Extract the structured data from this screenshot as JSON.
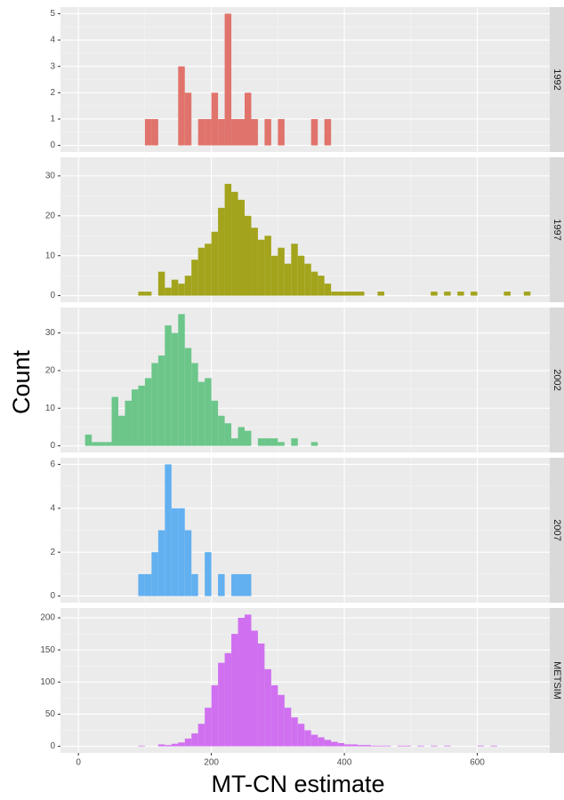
{
  "x_axis": {
    "label": "MT-CN estimate",
    "xlim": [
      -27,
      709
    ],
    "xticks": [
      0,
      200,
      400,
      600
    ]
  },
  "y_axis": {
    "label": "Count"
  },
  "chart_data": [
    {
      "type": "histogram",
      "facet": "1992",
      "color": "#e0736b",
      "grid": true,
      "ylim": [
        -0.25,
        5.25
      ],
      "yticks": [
        0,
        1,
        2,
        3,
        4,
        5
      ],
      "bins": [
        100,
        110,
        120,
        130,
        140,
        150,
        160,
        170,
        180,
        190,
        200,
        210,
        220,
        230,
        240,
        250,
        260,
        270,
        280,
        290,
        300,
        310,
        320,
        330,
        340,
        350,
        360,
        370,
        380
      ],
      "values": [
        1,
        1,
        0,
        0,
        0,
        3,
        2,
        0,
        1,
        1,
        2,
        1,
        5,
        1,
        1,
        2,
        1,
        0,
        1,
        0,
        1,
        0,
        0,
        0,
        0,
        1,
        0,
        1
      ]
    },
    {
      "type": "histogram",
      "facet": "1997",
      "color": "#a3a41c",
      "grid": true,
      "ylim": [
        -1.65,
        34.65
      ],
      "yticks": [
        0,
        10,
        20,
        30
      ],
      "bins": [
        90,
        100,
        110,
        120,
        130,
        140,
        150,
        160,
        170,
        180,
        190,
        200,
        210,
        220,
        230,
        240,
        250,
        260,
        270,
        280,
        290,
        300,
        310,
        320,
        330,
        340,
        350,
        360,
        370,
        380,
        390,
        400,
        410,
        420,
        430,
        440,
        450,
        460,
        470,
        480,
        490,
        500,
        510,
        520,
        530,
        540,
        550,
        560,
        570,
        580,
        590,
        600,
        610,
        620,
        630,
        640,
        650,
        660,
        670,
        680
      ],
      "values": [
        1,
        1,
        0,
        6,
        2,
        4,
        3,
        5,
        9,
        12,
        13,
        16,
        22,
        28,
        26,
        24,
        20,
        17,
        14,
        15,
        10,
        12,
        8,
        13,
        10,
        8,
        6,
        5,
        3,
        1,
        1,
        1,
        1,
        1,
        0,
        0,
        1,
        0,
        0,
        0,
        0,
        0,
        0,
        0,
        1,
        0,
        1,
        0,
        1,
        0,
        1,
        0,
        0,
        0,
        0,
        1,
        0,
        0,
        1
      ]
    },
    {
      "type": "histogram",
      "facet": "2002",
      "color": "#6cc68a",
      "grid": true,
      "ylim": [
        -1.75,
        36.75
      ],
      "yticks": [
        0,
        10,
        20,
        30
      ],
      "bins": [
        10,
        20,
        30,
        40,
        50,
        60,
        70,
        80,
        90,
        100,
        110,
        120,
        130,
        140,
        150,
        160,
        170,
        180,
        190,
        200,
        210,
        220,
        230,
        240,
        250,
        260,
        270,
        280,
        290,
        300,
        310,
        320,
        330,
        340,
        350,
        360
      ],
      "values": [
        3,
        1,
        1,
        1,
        13,
        8,
        12,
        15,
        16,
        18,
        22,
        24,
        32,
        30,
        35,
        26,
        22,
        17,
        18,
        12,
        8,
        6,
        2,
        5,
        4,
        0,
        2,
        2,
        2,
        1,
        0,
        2,
        0,
        0,
        1
      ]
    },
    {
      "type": "histogram",
      "facet": "2007",
      "color": "#62b0f0",
      "grid": true,
      "ylim": [
        -0.3,
        6.3
      ],
      "yticks": [
        0,
        2,
        4,
        6
      ],
      "bins": [
        90,
        100,
        110,
        120,
        130,
        140,
        150,
        160,
        170,
        180,
        190,
        200,
        210,
        220,
        230,
        240,
        250,
        260
      ],
      "values": [
        1,
        1,
        2,
        3,
        6,
        4,
        4,
        3,
        1,
        0,
        2,
        0,
        1,
        0,
        1,
        1,
        1
      ]
    },
    {
      "type": "histogram",
      "facet": "METSIM",
      "color": "#d070f0",
      "grid": true,
      "ylim": [
        -10.25,
        215.25
      ],
      "yticks": [
        0,
        50,
        100,
        150,
        200
      ],
      "bins": [
        90,
        100,
        110,
        120,
        130,
        140,
        150,
        160,
        170,
        180,
        190,
        200,
        210,
        220,
        230,
        240,
        250,
        260,
        270,
        280,
        290,
        300,
        310,
        320,
        330,
        340,
        350,
        360,
        370,
        380,
        390,
        400,
        410,
        420,
        430,
        440,
        450,
        460,
        470,
        480,
        490,
        500,
        510,
        520,
        530,
        540,
        550,
        560,
        570,
        580,
        590,
        600,
        610,
        620,
        630,
        640
      ],
      "values": [
        1,
        0,
        0,
        3,
        2,
        4,
        6,
        12,
        20,
        35,
        60,
        95,
        130,
        145,
        175,
        200,
        205,
        180,
        160,
        120,
        95,
        80,
        60,
        45,
        35,
        25,
        18,
        14,
        10,
        7,
        5,
        3,
        3,
        2,
        2,
        1,
        1,
        1,
        0,
        1,
        1,
        0,
        1,
        0,
        1,
        0,
        1,
        0,
        0,
        0,
        0,
        1,
        0,
        1,
        0
      ]
    }
  ]
}
